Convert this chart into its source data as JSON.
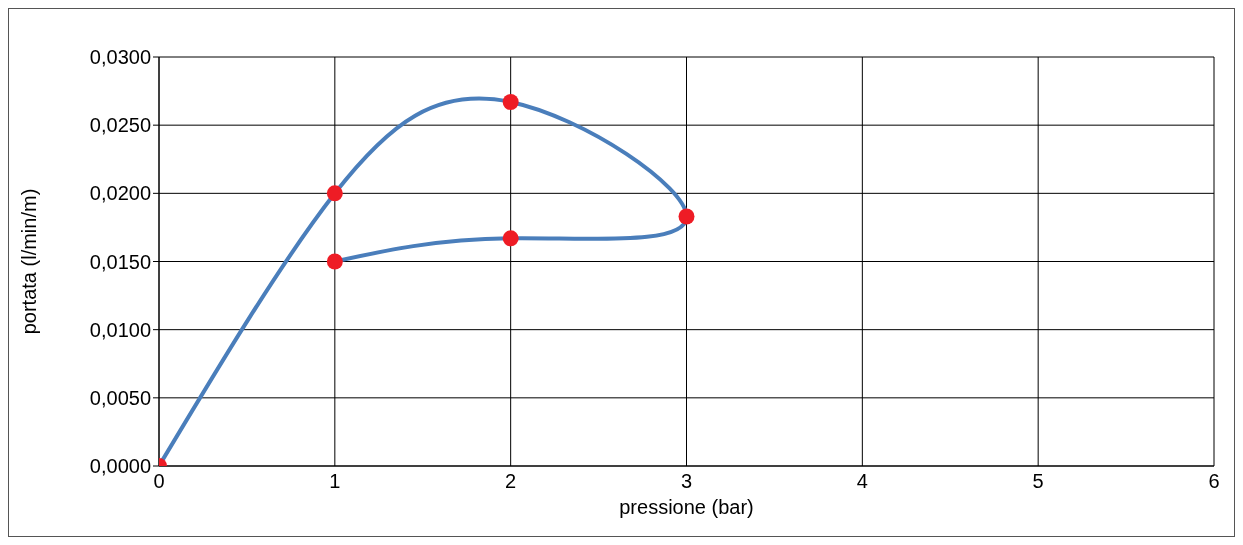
{
  "chart_data": {
    "type": "line",
    "xlabel": "pressione (bar)",
    "ylabel": "portata (l/min/m)",
    "series": [
      {
        "color": "#4a7ebb",
        "x": [
          0,
          1,
          2,
          3,
          2,
          1
        ],
        "values": [
          0,
          0.02,
          0.0267,
          0.0183,
          0.0167,
          0.015
        ],
        "colors": [
          "#ee1c25",
          "#ee1c25",
          "#ee1c25",
          "#ee1c25",
          "#ee1c25",
          "#ee1c25"
        ]
      }
    ],
    "xlim": [
      0,
      6
    ],
    "xticks": [
      0,
      1,
      2,
      3,
      4,
      5,
      6
    ],
    "ylim": [
      0,
      0.03
    ],
    "yticks": [
      {
        "value": 0,
        "label": "0,0000"
      },
      {
        "value": 0.005,
        "label": "0,0050"
      },
      {
        "value": 0.01,
        "label": "0,0100"
      },
      {
        "value": 0.015,
        "label": "0,0150"
      },
      {
        "value": 0.02,
        "label": "0,0200"
      },
      {
        "value": 0.025,
        "label": "0,0250"
      },
      {
        "value": 0.03,
        "label": "0,0300"
      }
    ],
    "grid": true,
    "marker": "circle",
    "line_style": "solid",
    "legend": false
  }
}
